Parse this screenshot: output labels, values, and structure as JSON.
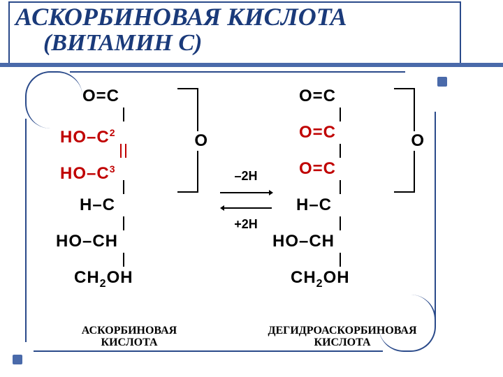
{
  "title": {
    "line1": "АСКОРБИНОВАЯ КИСЛОТА",
    "line2": "(ВИТАМИН С)",
    "title_color": "#1a3a7a",
    "underline_color": "#4a6aaa",
    "font_family": "Times New Roman",
    "font_style": "bold italic",
    "font_size_line1": 36,
    "font_size_line2": 34
  },
  "frame": {
    "border_color": "#2a4a8a",
    "bullet_color": "#4a6aaa",
    "corner_radius": 36
  },
  "colors": {
    "text_black": "#000000",
    "text_red": "#c00000",
    "background": "#ffffff"
  },
  "typography": {
    "formula_font": "Arial",
    "formula_size": 24,
    "formula_weight": "bold",
    "label_font": "Times New Roman",
    "label_size": 16,
    "label_weight": "bold"
  },
  "reaction": {
    "forward_label": "–2H",
    "reverse_label": "+2H"
  },
  "left_molecule": {
    "rows": [
      {
        "text": "O=C",
        "color": "black",
        "indent": "indent1"
      },
      {
        "text": "HO–C",
        "sup": "2",
        "color": "red",
        "indent": "indent2"
      },
      {
        "text": "HO–C",
        "sup": "3",
        "color": "red",
        "indent": "indent2"
      },
      {
        "text": "H–C",
        "color": "black",
        "indent": "indent3"
      },
      {
        "text": "HO–CH",
        "color": "black",
        "indent": "indent4"
      },
      {
        "text": "CH",
        "sub": "2",
        "tail": "OH",
        "color": "black",
        "indent": "indent5"
      }
    ],
    "ring_hetero": "O",
    "c2c3_double": true,
    "label_line1": "АСКОРБИНОВАЯ",
    "label_line2": "КИСЛОТА"
  },
  "right_molecule": {
    "rows": [
      {
        "text": "O=C",
        "color": "black",
        "indent": "indent1"
      },
      {
        "text": "O=C",
        "color": "red",
        "indent": "indent1"
      },
      {
        "text": "O=C",
        "color": "red",
        "indent": "indent1"
      },
      {
        "text": "H–C",
        "color": "black",
        "indent": "indent3"
      },
      {
        "text": "HO–CH",
        "color": "black",
        "indent": "indent4"
      },
      {
        "text": "CH",
        "sub": "2",
        "tail": "OH",
        "color": "black",
        "indent": "indent5"
      }
    ],
    "ring_hetero": "O",
    "c2c3_double": false,
    "label_line1": "ДЕГИДРОАСКОРБИНОВАЯ",
    "label_line2": "КИСЛОТА"
  }
}
